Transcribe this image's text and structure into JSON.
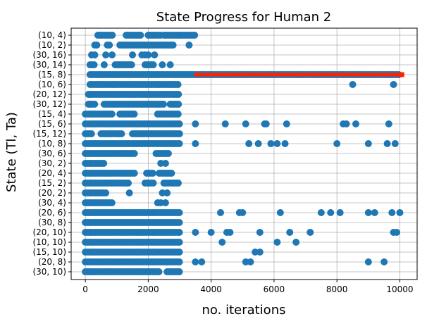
{
  "chart_data": {
    "type": "scatter",
    "title": "State Progress for Human 2",
    "xlabel": "no. iterations",
    "ylabel": "State (Tl, Ta)",
    "xlim": [
      -450,
      10550
    ],
    "xticks": [
      0,
      2000,
      4000,
      6000,
      8000,
      10000
    ],
    "xtick_labels": [
      "0",
      "2000",
      "4000",
      "6000",
      "8000",
      "10000"
    ],
    "categories": [
      "(30, 10)",
      "(20, 8)",
      "(15, 10)",
      "(10, 10)",
      "(20, 10)",
      "(30, 8)",
      "(20, 6)",
      "(30, 4)",
      "(20, 2)",
      "(15, 2)",
      "(20, 4)",
      "(30, 2)",
      "(30, 6)",
      "(10, 8)",
      "(15, 12)",
      "(15, 6)",
      "(15, 4)",
      "(30, 12)",
      "(20, 12)",
      "(10, 6)",
      "(15, 8)",
      "(30, 14)",
      "(30, 16)",
      "(10, 2)",
      "(10, 4)"
    ],
    "grid": true,
    "colors": {
      "points": "#1f77b4",
      "highlight": "#ff2200"
    },
    "rows": [
      {
        "state": "(30, 10)",
        "dense": [
          [
            0,
            2400
          ],
          [
            2600,
            3000
          ]
        ],
        "points": []
      },
      {
        "state": "(20, 8)",
        "dense": [
          [
            0,
            3000
          ]
        ],
        "points": [
          3500,
          3700,
          5100,
          5250,
          9000,
          9500
        ]
      },
      {
        "state": "(15, 10)",
        "dense": [
          [
            0,
            3000
          ]
        ],
        "points": [
          5400,
          5550
        ]
      },
      {
        "state": "(10, 10)",
        "dense": [
          [
            0,
            3000
          ]
        ],
        "points": [
          4350,
          6100,
          6700
        ]
      },
      {
        "state": "(20, 10)",
        "dense": [
          [
            0,
            3000
          ]
        ],
        "points": [
          3500,
          4000,
          4500,
          4600,
          5550,
          6500,
          7150,
          9800,
          9900
        ]
      },
      {
        "state": "(30, 8)",
        "dense": [
          [
            0,
            3000
          ]
        ],
        "points": []
      },
      {
        "state": "(20, 6)",
        "dense": [
          [
            0,
            3000
          ]
        ],
        "points": [
          4300,
          4900,
          5000,
          6200,
          7500,
          7800,
          8100,
          9000,
          9200,
          9750,
          10000
        ]
      },
      {
        "state": "(30, 4)",
        "dense": [
          [
            0,
            900
          ]
        ],
        "points": [
          2300,
          2400,
          2550
        ]
      },
      {
        "state": "(20, 2)",
        "dense": [
          [
            0,
            700
          ]
        ],
        "points": [
          1400,
          2450,
          2600
        ]
      },
      {
        "state": "(15, 2)",
        "dense": [
          [
            0,
            1400
          ],
          [
            1900,
            2200
          ],
          [
            2500,
            3000
          ]
        ],
        "points": []
      },
      {
        "state": "(20, 4)",
        "dense": [
          [
            0,
            1600
          ],
          [
            1950,
            2150
          ],
          [
            2350,
            2750
          ]
        ],
        "points": []
      },
      {
        "state": "(30, 2)",
        "dense": [
          [
            0,
            600
          ]
        ],
        "points": [
          2400,
          2550
        ]
      },
      {
        "state": "(30, 6)",
        "dense": [
          [
            0,
            1600
          ],
          [
            2250,
            2700
          ]
        ],
        "points": []
      },
      {
        "state": "(10, 8)",
        "dense": [
          [
            0,
            3000
          ]
        ],
        "points": [
          3500,
          5200,
          5500,
          5900,
          6100,
          6350,
          8000,
          9000,
          9600,
          9850
        ]
      },
      {
        "state": "(15, 12)",
        "dense": [
          [
            0,
            200
          ],
          [
            500,
            1200
          ],
          [
            1500,
            3000
          ]
        ],
        "points": []
      },
      {
        "state": "(15, 6)",
        "dense": [
          [
            0,
            3000
          ]
        ],
        "points": [
          3500,
          4450,
          5100,
          5700,
          5750,
          6400,
          8200,
          8300,
          8600,
          9650
        ]
      },
      {
        "state": "(15, 4)",
        "dense": [
          [
            0,
            900
          ],
          [
            1100,
            1600
          ],
          [
            2300,
            3000
          ]
        ],
        "points": []
      },
      {
        "state": "(30, 12)",
        "dense": [
          [
            100,
            300
          ],
          [
            600,
            2500
          ],
          [
            2700,
            3000
          ]
        ],
        "points": []
      },
      {
        "state": "(20, 12)",
        "dense": [
          [
            100,
            3000
          ]
        ],
        "points": []
      },
      {
        "state": "(10, 6)",
        "dense": [
          [
            150,
            3000
          ]
        ],
        "points": [
          8500,
          9800
        ]
      },
      {
        "state": "(15, 8)",
        "dense": [
          [
            150,
            10000
          ]
        ],
        "points": [],
        "highlight": [
          3450,
          10050
        ]
      },
      {
        "state": "(30, 14)",
        "dense": [
          [
            150,
            300
          ],
          [
            950,
            1500
          ],
          [
            1900,
            2200
          ]
        ],
        "points": [
          600,
          2450,
          2700
        ]
      },
      {
        "state": "(30, 16)",
        "dense": [],
        "points": [
          200,
          300,
          650,
          850,
          1500,
          1800,
          1900,
          2000,
          2200
        ]
      },
      {
        "state": "(10, 2)",
        "dense": [
          [
            300,
            400
          ],
          [
            700,
            800
          ],
          [
            1100,
            2800
          ]
        ],
        "points": [
          3300
        ]
      },
      {
        "state": "(10, 4)",
        "dense": [
          [
            400,
            900
          ],
          [
            1300,
            1800
          ],
          [
            2000,
            2400
          ],
          [
            2500,
            3500
          ]
        ],
        "points": []
      }
    ]
  }
}
